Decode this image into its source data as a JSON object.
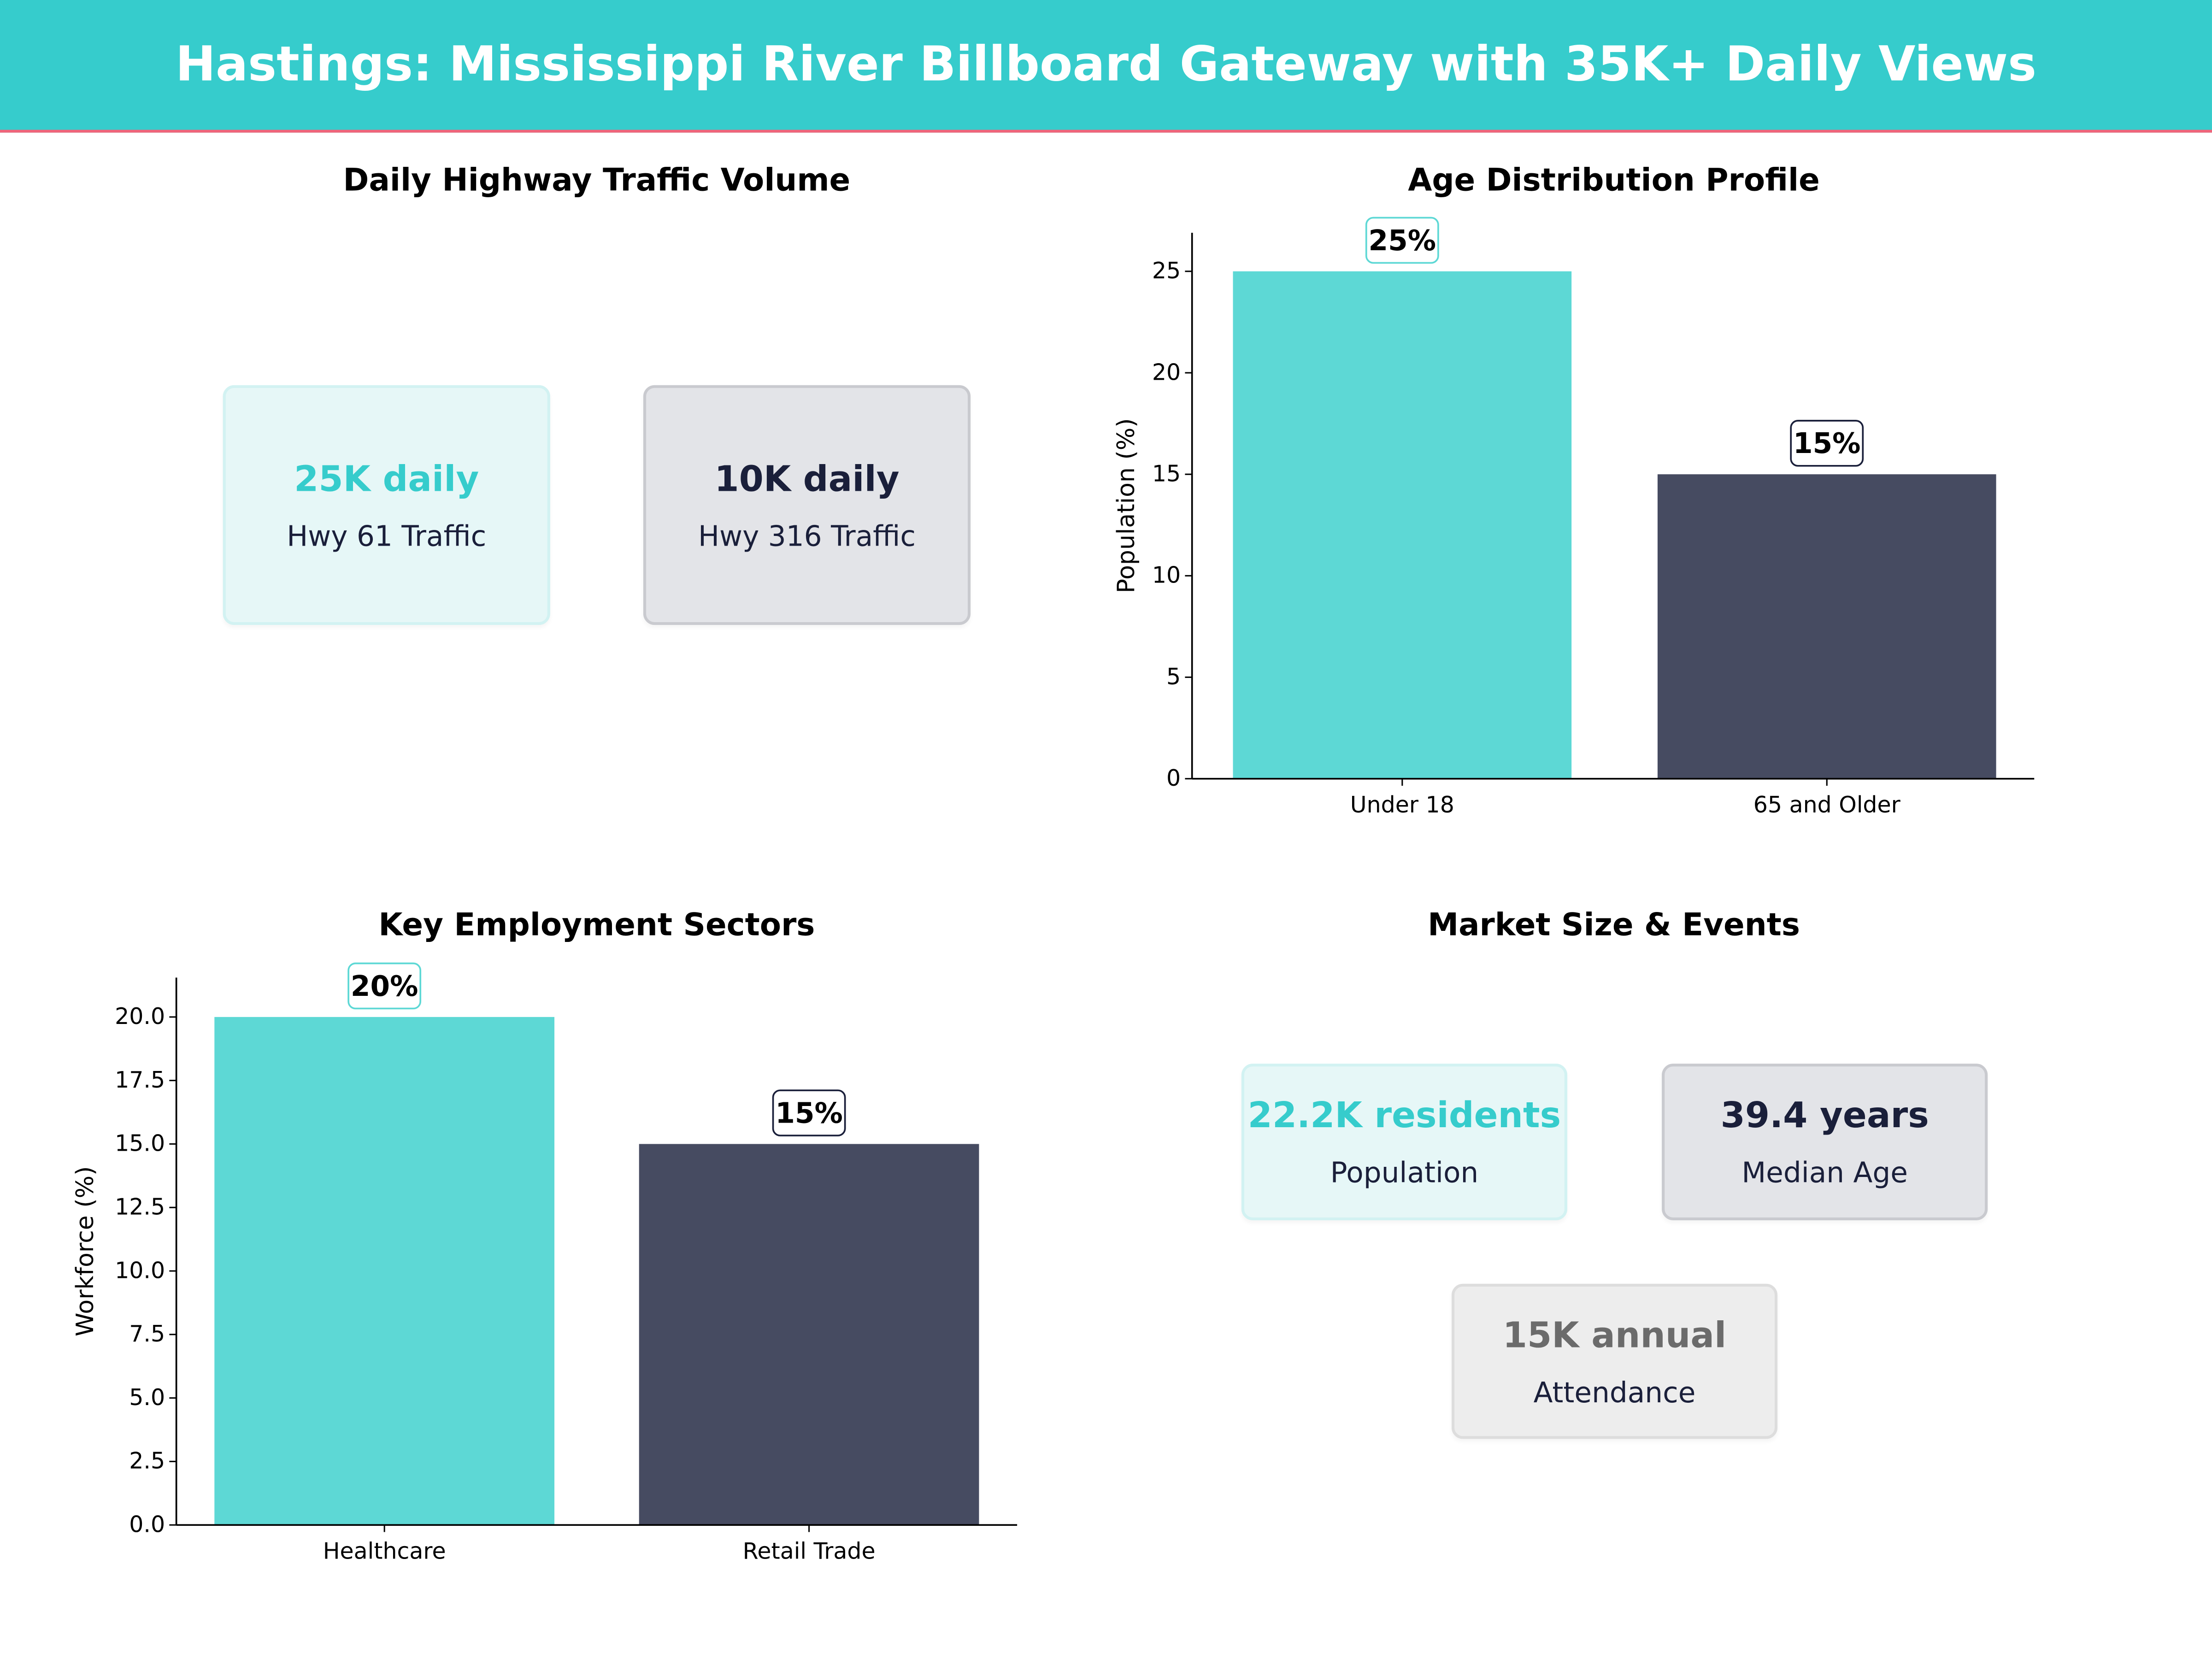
{
  "title": "Hastings: Mississippi River Billboard Gateway with 35K+ Daily Views",
  "colors": {
    "accent": "#36CCCC",
    "bar_teal": "#5DD8D5",
    "bar_dark": "#464B61",
    "header_line": "#F0647A",
    "dark_text": "#1a1f3a"
  },
  "traffic": {
    "title": "Daily Highway Traffic Volume",
    "cards": [
      {
        "value": "25K daily",
        "label": "Hwy 61 Traffic",
        "style": "teal"
      },
      {
        "value": "10K daily",
        "label": "Hwy 316 Traffic",
        "style": "dark"
      }
    ]
  },
  "market": {
    "title": "Market Size & Events",
    "cards": [
      {
        "value": "22.2K residents",
        "label": "Population",
        "style": "teal"
      },
      {
        "value": "39.4 years",
        "label": "Median Age",
        "style": "dark"
      },
      {
        "value": "15K annual",
        "label": "Attendance",
        "style": "gray"
      }
    ]
  },
  "chart_data": [
    {
      "type": "bar",
      "title": "Age Distribution Profile",
      "categories": [
        "Under 18",
        "65 and Older"
      ],
      "values": [
        25,
        15
      ],
      "data_labels": [
        "25%",
        "15%"
      ],
      "xlabel": "",
      "ylabel": "Population (%)",
      "ylim": [
        0,
        26.9
      ],
      "yticks": [
        0,
        5,
        10,
        15,
        20,
        25
      ],
      "ytick_labels": [
        "0",
        "5",
        "10",
        "15",
        "20",
        "25"
      ],
      "grid": false
    },
    {
      "type": "bar",
      "title": "Key Employment Sectors",
      "categories": [
        "Healthcare",
        "Retail Trade"
      ],
      "values": [
        20,
        15
      ],
      "data_labels": [
        "20%",
        "15%"
      ],
      "xlabel": "",
      "ylabel": "Workforce (%)",
      "ylim": [
        0,
        21.55
      ],
      "yticks": [
        0,
        2.5,
        5,
        7.5,
        10,
        12.5,
        15,
        17.5,
        20
      ],
      "ytick_labels": [
        "0.0",
        "2.5",
        "5.0",
        "7.5",
        "10.0",
        "12.5",
        "15.0",
        "17.5",
        "20.0"
      ],
      "grid": false
    }
  ]
}
